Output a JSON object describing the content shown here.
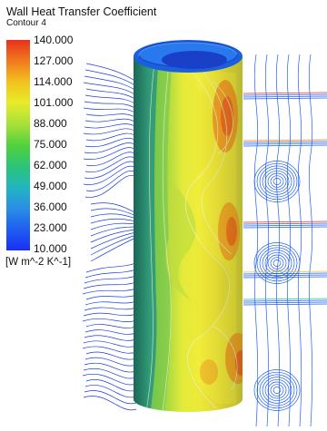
{
  "legend": {
    "title": "Wall Heat Transfer Coefficient",
    "subtitle": "Contour 4",
    "ticks": [
      "140.000",
      "127.000",
      "114.000",
      "101.000",
      "88.000",
      "75.000",
      "62.000",
      "49.000",
      "36.000",
      "23.000",
      "10.000"
    ],
    "unit": "[W m^-2 K^-1]",
    "colors": [
      "#e8321e",
      "#f07a1e",
      "#f3c21e",
      "#e6ec2a",
      "#a8e03a",
      "#52d23c",
      "#2cc478",
      "#22b6c0",
      "#2a8ee6",
      "#1f5ef0",
      "#1a2ff5"
    ]
  }
}
